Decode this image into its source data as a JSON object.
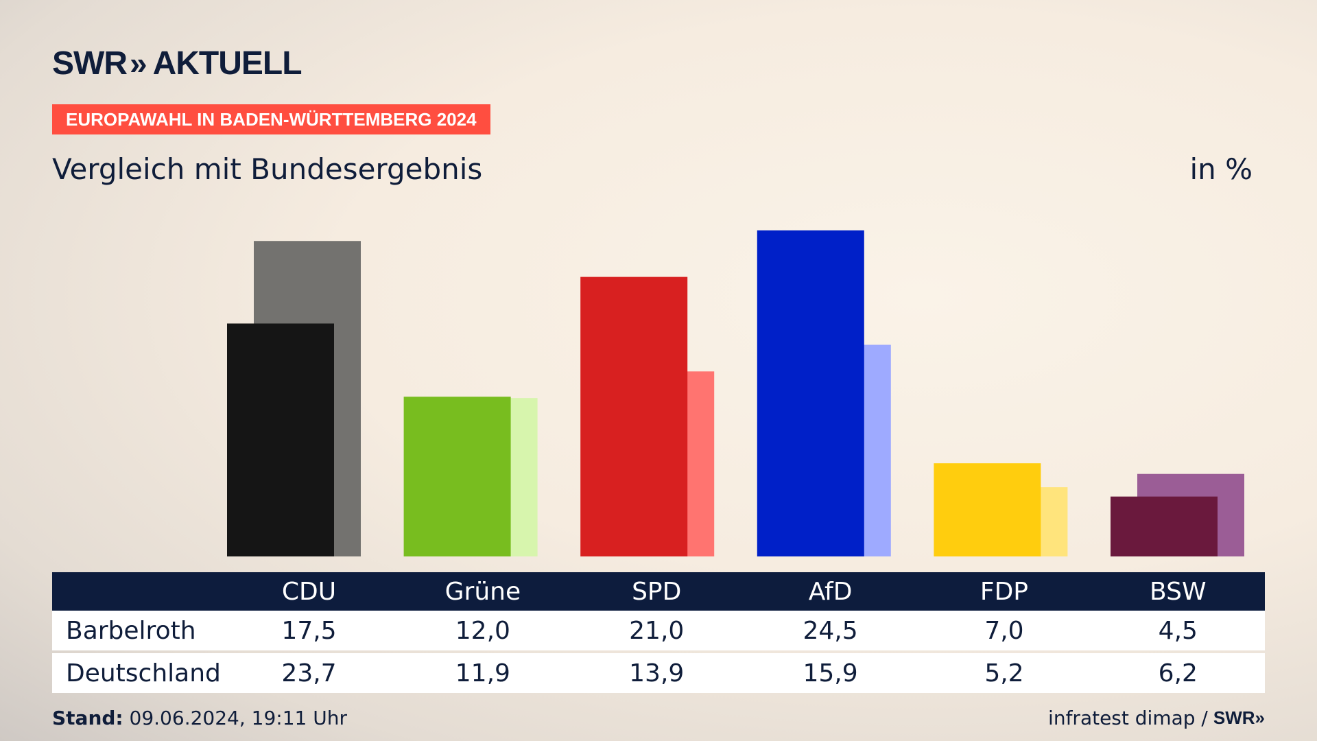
{
  "header": {
    "logo_text": "SWR",
    "logo_chevrons": "»",
    "logo_suffix": "AKTUELL",
    "tag": "EUROPAWAHL IN BADEN-WÜRTTEMBERG 2024",
    "subtitle": "Vergleich mit Bundesergebnis",
    "unit": "in %"
  },
  "table": {
    "rows": [
      {
        "label": "Barbelroth",
        "values": [
          "17,5",
          "12,0",
          "21,0",
          "24,5",
          "7,0",
          "4,5"
        ]
      },
      {
        "label": "Deutschland",
        "values": [
          "23,7",
          "11,9",
          "13,9",
          "15,9",
          "5,2",
          "6,2"
        ]
      }
    ]
  },
  "footer": {
    "stand_label": "Stand:",
    "stand_value": "09.06.2024, 19:11 Uhr",
    "source": "infratest dimap /",
    "source_logo": "SWR»"
  },
  "chart_data": {
    "type": "bar",
    "categories": [
      "CDU",
      "Grüne",
      "SPD",
      "AfD",
      "FDP",
      "BSW"
    ],
    "series": [
      {
        "name": "Barbelroth",
        "values": [
          17.5,
          12.0,
          21.0,
          24.5,
          7.0,
          4.5
        ]
      },
      {
        "name": "Deutschland",
        "values": [
          23.7,
          11.9,
          13.9,
          15.9,
          5.2,
          6.2
        ]
      }
    ],
    "colors": {
      "Barbelroth": [
        "#151515",
        "#78bd1f",
        "#d82020",
        "#0020c8",
        "#ffcd0e",
        "#6a193d"
      ],
      "Deutschland": [
        "#73726f",
        "#d7f5ad",
        "#ff7470",
        "#9eaaff",
        "#ffe47c",
        "#9b5d96"
      ]
    },
    "ylim": [
      0,
      25
    ]
  }
}
